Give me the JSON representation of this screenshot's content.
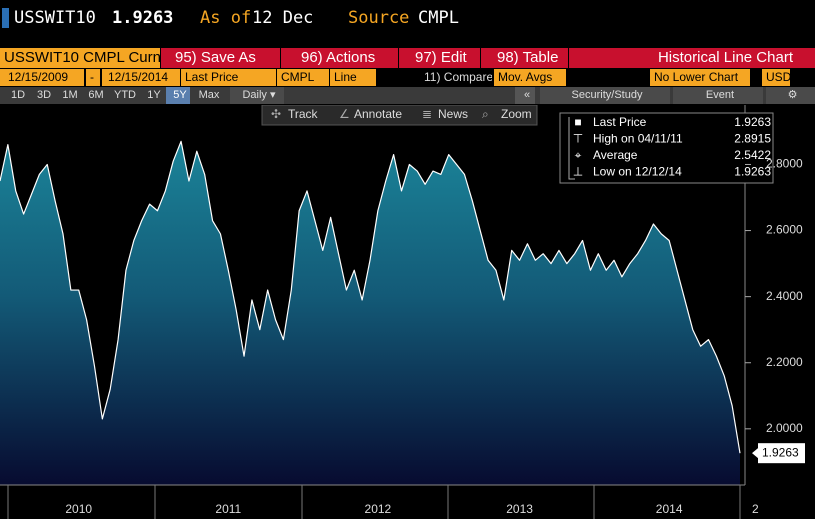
{
  "header": {
    "ticker": "USSWIT10",
    "price": "1.9263",
    "as_of_label": "As of",
    "as_of_date": "12 Dec",
    "source_label": "Source",
    "source": "CMPL"
  },
  "menu": {
    "security": "USSWIT10 CMPL Curn",
    "buttons": [
      "95) Save As",
      "96) Actions",
      "97) Edit",
      "98) Table"
    ],
    "title": "Historical Line Chart"
  },
  "fields": {
    "start": "12/15/2009",
    "dash": "-",
    "end": "12/15/2014",
    "field": "Last Price",
    "source": "CMPL",
    "style": "Line",
    "compare": "11) Compare",
    "overlay": "Mov. Avgs",
    "lower": "No Lower Chart",
    "currency": "USD"
  },
  "toolbar": {
    "periods": [
      "1D",
      "3D",
      "1M",
      "6M",
      "YTD",
      "1Y",
      "5Y",
      "Max"
    ],
    "selected_period": "5Y",
    "frequency": "Daily ▾",
    "collapse": "«",
    "study": "Security/Study",
    "event": "Event"
  },
  "tools": [
    "Track",
    "Annotate",
    "News",
    "Zoom"
  ],
  "chart_data": {
    "type": "line",
    "categories": [
      null,
      null,
      null,
      null,
      null,
      null,
      null,
      null,
      null,
      null,
      "2010",
      null,
      null,
      null,
      null,
      null,
      null,
      null,
      null,
      null,
      null,
      null,
      null,
      null,
      null,
      null,
      null,
      null,
      null,
      "2011",
      null,
      null,
      null,
      null,
      null,
      null,
      null,
      null,
      null,
      null,
      null,
      null,
      null,
      null,
      null,
      null,
      null,
      null,
      "2012",
      null,
      null,
      null,
      null,
      null,
      null,
      null,
      null,
      null,
      null,
      null,
      null,
      null,
      null,
      null,
      null,
      null,
      "2013",
      null,
      null,
      null,
      null,
      null,
      null,
      null,
      null,
      null,
      null,
      null,
      null,
      null,
      null,
      null,
      null,
      null,
      null,
      "2014",
      null,
      null,
      null,
      null,
      null,
      null,
      null,
      null,
      null
    ],
    "series": [
      {
        "name": "Last Price",
        "color": "#ffffff",
        "values": [
          2.75,
          2.86,
          2.72,
          2.65,
          2.71,
          2.77,
          2.8,
          2.69,
          2.59,
          2.42,
          2.42,
          2.33,
          2.19,
          2.03,
          2.12,
          2.27,
          2.48,
          2.57,
          2.63,
          2.68,
          2.66,
          2.72,
          2.81,
          2.87,
          2.75,
          2.84,
          2.77,
          2.63,
          2.59,
          2.48,
          2.36,
          2.22,
          2.39,
          2.3,
          2.42,
          2.33,
          2.27,
          2.42,
          2.66,
          2.72,
          2.63,
          2.54,
          2.64,
          2.53,
          2.42,
          2.48,
          2.39,
          2.51,
          2.66,
          2.75,
          2.83,
          2.72,
          2.8,
          2.78,
          2.74,
          2.78,
          2.77,
          2.83,
          2.8,
          2.77,
          2.69,
          2.6,
          2.51,
          2.48,
          2.39,
          2.54,
          2.51,
          2.56,
          2.51,
          2.53,
          2.5,
          2.54,
          2.5,
          2.53,
          2.57,
          2.48,
          2.53,
          2.48,
          2.51,
          2.46,
          2.5,
          2.53,
          2.57,
          2.62,
          2.59,
          2.57,
          2.48,
          2.39,
          2.3,
          2.25,
          2.27,
          2.22,
          2.16,
          2.07,
          1.9263
        ]
      }
    ],
    "ylim": [
      1.83,
      2.98
    ],
    "yticks": [
      {
        "value": 2.0,
        "label": "2.0000"
      },
      {
        "value": 2.2,
        "label": "2.2000"
      },
      {
        "value": 2.4,
        "label": "2.4000"
      },
      {
        "value": 2.6,
        "label": "2.6000"
      },
      {
        "value": 2.8,
        "label": "2.8000"
      }
    ],
    "last_price": 1.9263,
    "x_overflow_label": "2",
    "legend": [
      {
        "label": "Last Price",
        "value": "1.9263"
      },
      {
        "label": "High on 04/11/11",
        "value": "2.8915"
      },
      {
        "label": "Average",
        "value": "2.5422"
      },
      {
        "label": "Low on 12/12/14",
        "value": "1.9263"
      }
    ]
  }
}
